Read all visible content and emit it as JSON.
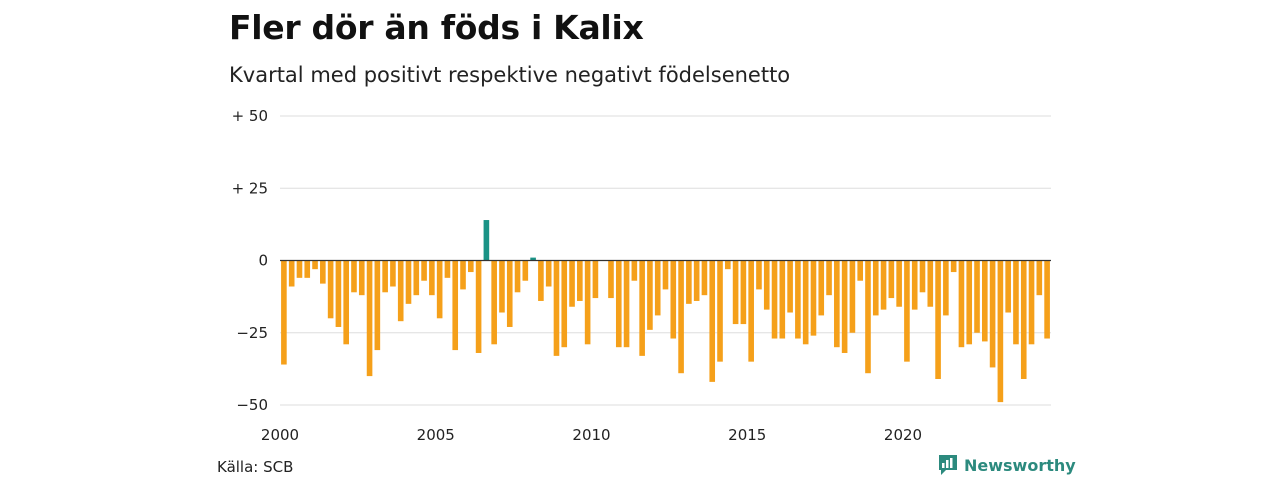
{
  "title": "Fler dör än föds i Kalix",
  "subtitle": "Kvartal med positivt respektive negativt födelsenetto",
  "source": "Källa: SCB",
  "brand": "Newsworthy",
  "colors": {
    "positive": "#1a9386",
    "negative": "#f5a01a",
    "grid": "#dddddd",
    "zero": "#333333",
    "brand": "#2c8a7e"
  },
  "chart_data": {
    "type": "bar",
    "y_ticks": [
      {
        "value": 50,
        "label": "+ 50"
      },
      {
        "value": 25,
        "label": "+ 25"
      },
      {
        "value": 0,
        "label": "0"
      },
      {
        "value": -25,
        "label": "−25"
      },
      {
        "value": -50,
        "label": "−50"
      }
    ],
    "x_ticks": [
      "2000",
      "2005",
      "2010",
      "2015",
      "2020"
    ],
    "start_year": 2000,
    "ylim": [
      -50,
      50
    ],
    "grid": true,
    "values": [
      -36,
      -9,
      -6,
      -6,
      -3,
      -8,
      -20,
      -23,
      -29,
      -11,
      -12,
      -40,
      -31,
      -11,
      -9,
      -21,
      -15,
      -12,
      -7,
      -12,
      -20,
      -6,
      -31,
      -10,
      -4,
      -32,
      14,
      -29,
      -18,
      -23,
      -11,
      -7,
      1,
      -14,
      -9,
      -33,
      -30,
      -16,
      -14,
      -29,
      -13,
      0,
      -13,
      -30,
      -30,
      -7,
      -33,
      -24,
      -19,
      -10,
      -27,
      -39,
      -15,
      -14,
      -12,
      -42,
      -35,
      -3,
      -22,
      -22,
      -35,
      -10,
      -17,
      -27,
      -27,
      -18,
      -27,
      -29,
      -26,
      -19,
      -12,
      -30,
      -32,
      -25,
      -7,
      -39,
      -19,
      -17,
      -13,
      -16,
      -35,
      -17,
      -11,
      -16,
      -41,
      -19,
      -4,
      -30,
      -29,
      -25,
      -28,
      -37,
      -49,
      -18,
      -29,
      -41,
      -29,
      -12,
      -27
    ]
  }
}
